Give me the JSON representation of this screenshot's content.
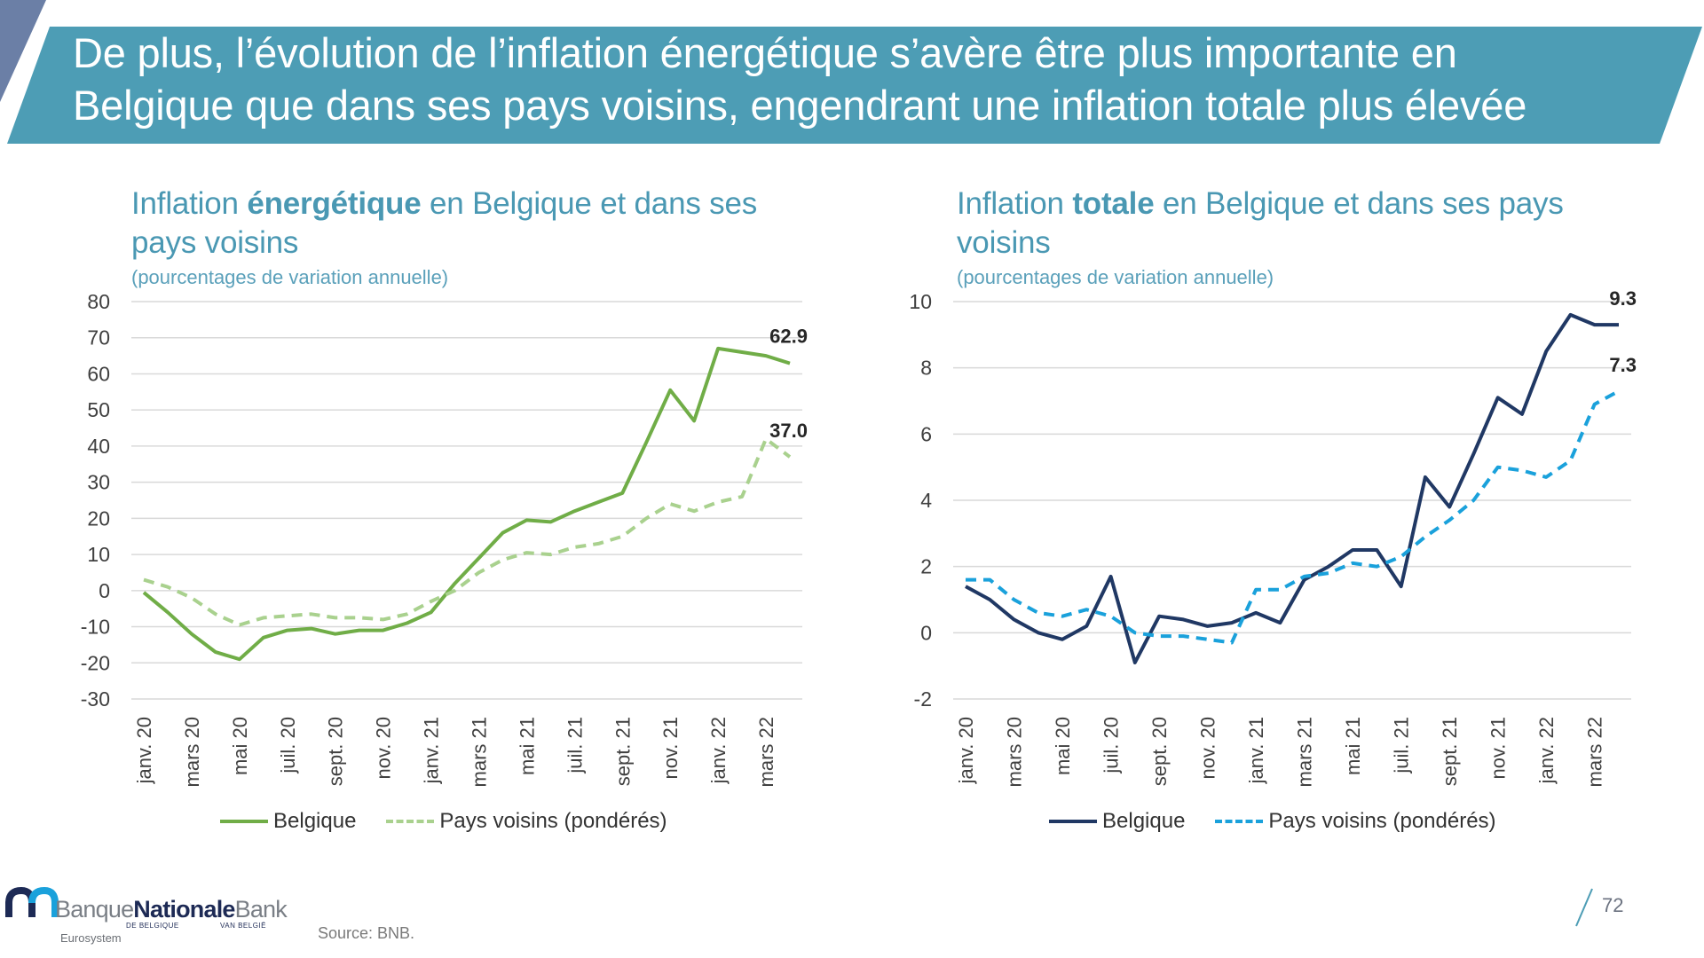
{
  "slide": {
    "title_line1": "De plus, l’évolution de l’inflation énergétique s’avère être plus importante en",
    "title_line2": "Belgique que dans ses pays voisins, engendrant une inflation totale plus élevée",
    "source": "Source: BNB.",
    "page_number": "72",
    "logo": {
      "word1": "Banque",
      "word2": "Nationale",
      "word3": "Bank",
      "sub1": "DE BELGIQUE",
      "sub2": "VAN BELGIË",
      "eurosystem": "Eurosystem"
    },
    "colors": {
      "banner": "#4d9db5",
      "banner_accent": "#6b7fa6",
      "title_text": "#ffffff",
      "chart_title": "#4a98b3",
      "grid": "#d9d9d9"
    }
  },
  "chart_data": [
    {
      "type": "line",
      "title_pre": "Inflation ",
      "title_bold": "énergétique",
      "title_post_line1": " en Belgique et dans ses",
      "title_line2": "pays voisins",
      "subtitle": "(pourcentages de variation annuelle)",
      "ylim": [
        -30,
        80
      ],
      "yticks": [
        80,
        70,
        60,
        50,
        40,
        30,
        20,
        10,
        0,
        -10,
        -20,
        -30
      ],
      "x": [
        "janv. 20",
        "févr. 20",
        "mars 20",
        "avr. 20",
        "mai 20",
        "juin 20",
        "juil. 20",
        "août 20",
        "sept. 20",
        "oct. 20",
        "nov. 20",
        "déc. 20",
        "janv. 21",
        "févr. 21",
        "mars 21",
        "avr. 21",
        "mai 21",
        "juin 21",
        "juil. 21",
        "août 21",
        "sept. 21",
        "oct. 21",
        "nov. 21",
        "déc. 21",
        "janv. 22",
        "févr. 22",
        "mars 22",
        "avr. 22"
      ],
      "xtick_labels": [
        "janv. 20",
        "mars 20",
        "mai 20",
        "juil. 20",
        "sept. 20",
        "nov. 20",
        "janv. 21",
        "mars 21",
        "mai 21",
        "juil. 21",
        "sept. 21",
        "nov. 21",
        "janv. 22",
        "mars 22"
      ],
      "series": [
        {
          "name": "Belgique",
          "color": "#70ad47",
          "dash": "solid",
          "values": [
            -0.5,
            -6,
            -12,
            -17,
            -19,
            -13,
            -11,
            -10.5,
            -12,
            -11,
            -11,
            -9,
            -6,
            2,
            9,
            16,
            19.5,
            19,
            22,
            24.5,
            27,
            41,
            55.5,
            47,
            67,
            66,
            65,
            62.9
          ],
          "end_label": "62.9"
        },
        {
          "name": "Pays voisins (pondérés)",
          "color": "#a9d18e",
          "dash": "dashed",
          "values": [
            3,
            1,
            -2,
            -6.5,
            -9.5,
            -7.5,
            -7,
            -6.5,
            -7.5,
            -7.5,
            -8,
            -6.5,
            -3,
            0,
            5,
            8.5,
            10.5,
            10,
            12,
            13,
            15,
            20,
            24,
            22,
            24.5,
            26,
            42,
            37
          ],
          "end_label": "37.0"
        }
      ]
    },
    {
      "type": "line",
      "title_pre": "Inflation ",
      "title_bold": "totale",
      "title_post_line1": " en Belgique et dans ses pays",
      "title_line2": "voisins",
      "subtitle": "(pourcentages de variation annuelle)",
      "ylim": [
        -2,
        10
      ],
      "yticks": [
        10,
        8,
        6,
        4,
        2,
        0,
        -2
      ],
      "x": [
        "janv. 20",
        "févr. 20",
        "mars 20",
        "avr. 20",
        "mai 20",
        "juin 20",
        "juil. 20",
        "août 20",
        "sept. 20",
        "oct. 20",
        "nov. 20",
        "déc. 20",
        "janv. 21",
        "févr. 21",
        "mars 21",
        "avr. 21",
        "mai 21",
        "juin 21",
        "juil. 21",
        "août 21",
        "sept. 21",
        "oct. 21",
        "nov. 21",
        "déc. 21",
        "janv. 22",
        "févr. 22",
        "mars 22",
        "avr. 22"
      ],
      "xtick_labels": [
        "janv. 20",
        "mars 20",
        "mai 20",
        "juil. 20",
        "sept. 20",
        "nov. 20",
        "janv. 21",
        "mars 21",
        "mai 21",
        "juil. 21",
        "sept. 21",
        "nov. 21",
        "janv. 22",
        "mars 22"
      ],
      "series": [
        {
          "name": "Belgique",
          "color": "#203864",
          "dash": "solid",
          "values": [
            1.4,
            1,
            0.4,
            0,
            -0.2,
            0.2,
            1.7,
            -0.9,
            0.5,
            0.4,
            0.2,
            0.3,
            0.6,
            0.3,
            1.6,
            2,
            2.5,
            2.5,
            1.4,
            4.7,
            3.8,
            5.4,
            7.1,
            6.6,
            8.5,
            9.6,
            9.3,
            9.3
          ],
          "end_label": "9.3"
        },
        {
          "name": "Pays voisins (pondérés)",
          "color": "#1aa1db",
          "dash": "dashed",
          "values": [
            1.6,
            1.6,
            1,
            0.6,
            0.5,
            0.7,
            0.5,
            0,
            -0.1,
            -0.1,
            -0.2,
            -0.3,
            1.3,
            1.3,
            1.7,
            1.8,
            2.1,
            2,
            2.3,
            2.9,
            3.4,
            4,
            5,
            4.9,
            4.7,
            5.2,
            6.9,
            7.3
          ],
          "end_label": "7.3"
        }
      ]
    }
  ]
}
